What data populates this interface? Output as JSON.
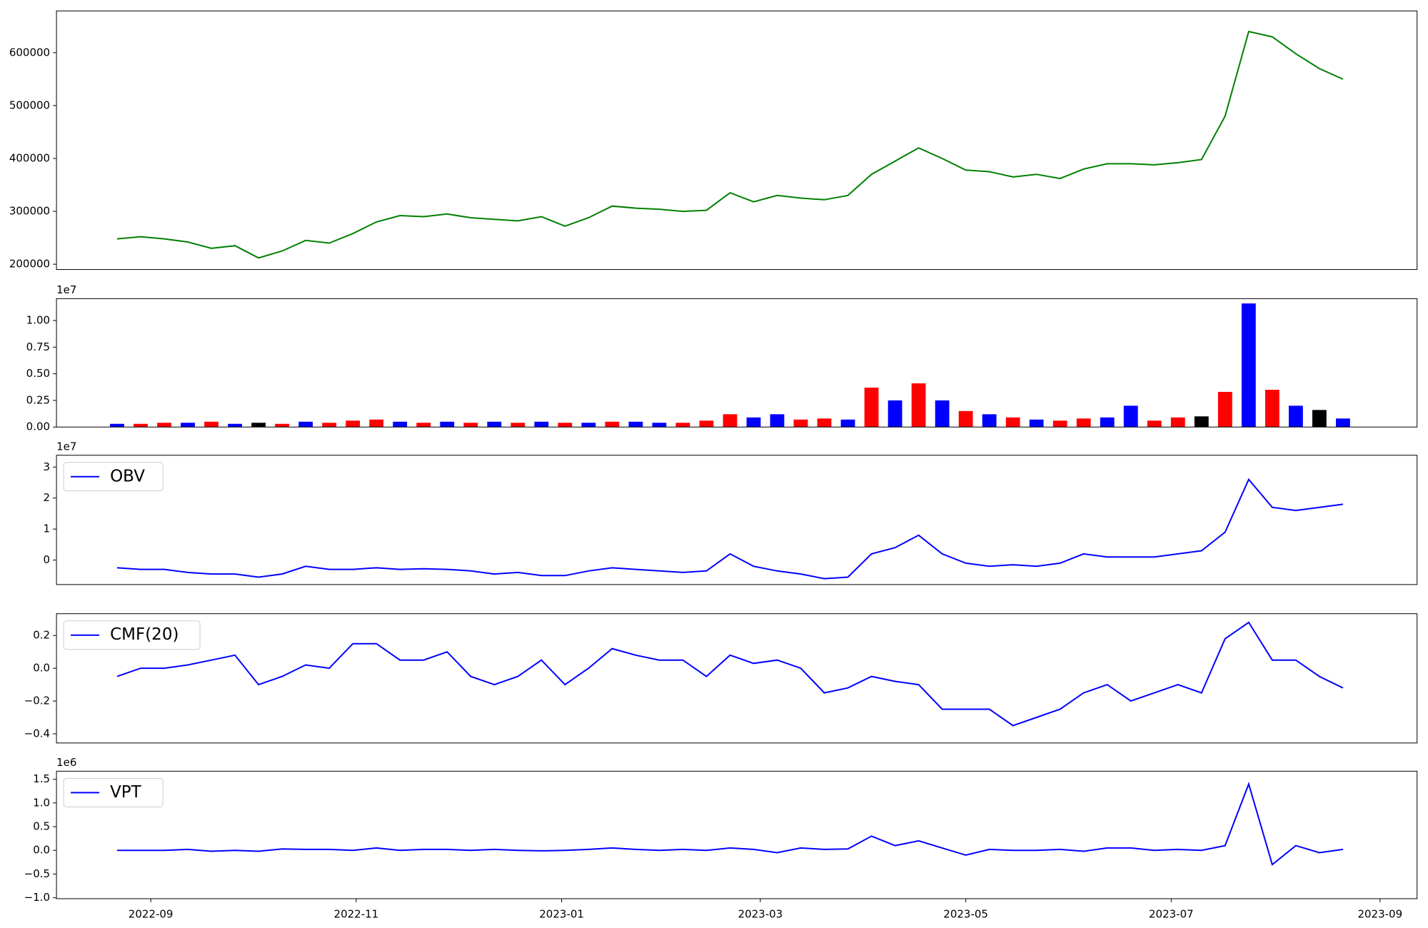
{
  "chart_data": [
    {
      "type": "line",
      "x": [
        19226,
        19233,
        19240,
        19247,
        19254,
        19261,
        19268,
        19275,
        19282,
        19289,
        19296,
        19303,
        19310,
        19317,
        19324,
        19331,
        19338,
        19345,
        19352,
        19359,
        19366,
        19373,
        19380,
        19387,
        19394,
        19401,
        19408,
        19415,
        19422,
        19429,
        19436,
        19443,
        19450,
        19457,
        19464,
        19471,
        19478,
        19485,
        19492,
        19499,
        19506,
        19513,
        19520,
        19527,
        19534,
        19541,
        19548,
        19555,
        19562,
        19569,
        19576,
        19583,
        19590
      ],
      "xlim": [
        19208,
        19612
      ],
      "series": [
        {
          "color": "green",
          "values": [
            248000,
            252000,
            248000,
            242000,
            230000,
            235000,
            212000,
            225000,
            245000,
            240000,
            258000,
            280000,
            292000,
            290000,
            295000,
            288000,
            285000,
            282000,
            290000,
            272000,
            288000,
            310000,
            306000,
            304000,
            300000,
            302000,
            335000,
            318000,
            330000,
            325000,
            322000,
            330000,
            370000,
            395000,
            420000,
            400000,
            378000,
            375000,
            365000,
            370000,
            362000,
            380000,
            390000,
            390000,
            388000,
            392000,
            398000,
            480000,
            640000,
            630000,
            598000,
            570000,
            550000
          ]
        }
      ],
      "ylim": [
        190000,
        679000
      ],
      "yticks": [
        200000,
        300000,
        400000,
        500000,
        600000
      ]
    },
    {
      "type": "bar",
      "x": [
        19226,
        19233,
        19240,
        19247,
        19254,
        19261,
        19268,
        19275,
        19282,
        19289,
        19296,
        19303,
        19310,
        19317,
        19324,
        19331,
        19338,
        19345,
        19352,
        19359,
        19366,
        19373,
        19380,
        19387,
        19394,
        19401,
        19408,
        19415,
        19422,
        19429,
        19436,
        19443,
        19450,
        19457,
        19464,
        19471,
        19478,
        19485,
        19492,
        19499,
        19506,
        19513,
        19520,
        19527,
        19534,
        19541,
        19548,
        19555,
        19562,
        19569,
        19576,
        19583,
        19590
      ],
      "xlim": [
        19208,
        19612
      ],
      "values": [
        0.03,
        0.03,
        0.04,
        0.04,
        0.05,
        0.03,
        0.04,
        0.03,
        0.05,
        0.04,
        0.06,
        0.07,
        0.05,
        0.04,
        0.05,
        0.04,
        0.05,
        0.04,
        0.05,
        0.04,
        0.04,
        0.05,
        0.05,
        0.04,
        0.04,
        0.06,
        0.12,
        0.09,
        0.12,
        0.07,
        0.08,
        0.07,
        0.37,
        0.25,
        0.41,
        0.25,
        0.15,
        0.12,
        0.09,
        0.07,
        0.06,
        0.08,
        0.09,
        0.2,
        0.06,
        0.09,
        0.1,
        0.33,
        1.16,
        0.35,
        0.2,
        0.16,
        0.08
      ],
      "colors": [
        "blue",
        "red",
        "red",
        "blue",
        "red",
        "blue",
        "black",
        "red",
        "blue",
        "red",
        "red",
        "red",
        "blue",
        "red",
        "blue",
        "red",
        "blue",
        "red",
        "blue",
        "red",
        "blue",
        "red",
        "blue",
        "blue",
        "red",
        "red",
        "red",
        "blue",
        "blue",
        "red",
        "red",
        "blue",
        "red",
        "blue",
        "red",
        "blue",
        "red",
        "blue",
        "red",
        "blue",
        "red",
        "red",
        "blue",
        "blue",
        "red",
        "red",
        "black",
        "red",
        "blue",
        "red",
        "blue",
        "black",
        "blue"
      ],
      "y_offset_label": "1e7",
      "ylim": [
        0,
        1.205
      ],
      "yticks": [
        {
          "value": 0,
          "label": "0.00"
        },
        {
          "value": 0.25,
          "label": "0.25"
        },
        {
          "value": 0.5,
          "label": "0.50"
        },
        {
          "value": 0.75,
          "label": "0.75"
        },
        {
          "value": 1,
          "label": "1.00"
        }
      ]
    },
    {
      "type": "line",
      "x": [
        19226,
        19233,
        19240,
        19247,
        19254,
        19261,
        19268,
        19275,
        19282,
        19289,
        19296,
        19303,
        19310,
        19317,
        19324,
        19331,
        19338,
        19345,
        19352,
        19359,
        19366,
        19373,
        19380,
        19387,
        19394,
        19401,
        19408,
        19415,
        19422,
        19429,
        19436,
        19443,
        19450,
        19457,
        19464,
        19471,
        19478,
        19485,
        19492,
        19499,
        19506,
        19513,
        19520,
        19527,
        19534,
        19541,
        19548,
        19555,
        19562,
        19569,
        19576,
        19583,
        19590
      ],
      "xlim": [
        19208,
        19612
      ],
      "series": [
        {
          "name": "OBV",
          "color": "blue",
          "values": [
            -0.25,
            -0.3,
            -0.3,
            -0.4,
            -0.45,
            -0.45,
            -0.55,
            -0.45,
            -0.2,
            -0.3,
            -0.3,
            -0.25,
            -0.3,
            -0.28,
            -0.3,
            -0.35,
            -0.45,
            -0.4,
            -0.5,
            -0.5,
            -0.35,
            -0.25,
            -0.3,
            -0.35,
            -0.4,
            -0.35,
            0.2,
            -0.2,
            -0.35,
            -0.45,
            -0.6,
            -0.55,
            0.2,
            0.4,
            0.8,
            0.2,
            -0.1,
            -0.2,
            -0.15,
            -0.2,
            -0.1,
            0.2,
            0.1,
            0.1,
            0.1,
            0.2,
            0.3,
            0.9,
            2.6,
            1.7,
            1.6,
            1.7,
            1.8
          ]
        }
      ],
      "legend": "upper left",
      "y_offset_label": "1e7",
      "ylim": [
        -0.79,
        3.38
      ],
      "yticks": [
        0,
        1,
        2,
        3
      ]
    },
    {
      "type": "line",
      "x": [
        19226,
        19233,
        19240,
        19247,
        19254,
        19261,
        19268,
        19275,
        19282,
        19289,
        19296,
        19303,
        19310,
        19317,
        19324,
        19331,
        19338,
        19345,
        19352,
        19359,
        19366,
        19373,
        19380,
        19387,
        19394,
        19401,
        19408,
        19415,
        19422,
        19429,
        19436,
        19443,
        19450,
        19457,
        19464,
        19471,
        19478,
        19485,
        19492,
        19499,
        19506,
        19513,
        19520,
        19527,
        19534,
        19541,
        19548,
        19555,
        19562,
        19569,
        19576,
        19583,
        19590
      ],
      "xlim": [
        19208,
        19612
      ],
      "series": [
        {
          "name": "CMF(20)",
          "color": "blue",
          "values": [
            -0.05,
            0.0,
            0.0,
            0.02,
            0.05,
            0.08,
            -0.1,
            -0.05,
            0.02,
            0.0,
            0.15,
            0.15,
            0.05,
            0.05,
            0.1,
            -0.05,
            -0.1,
            -0.05,
            0.05,
            -0.1,
            0.0,
            0.12,
            0.08,
            0.05,
            0.05,
            -0.05,
            0.08,
            0.03,
            0.05,
            0.0,
            -0.15,
            -0.12,
            -0.05,
            -0.08,
            -0.1,
            -0.25,
            -0.25,
            -0.25,
            -0.35,
            -0.3,
            -0.25,
            -0.15,
            -0.1,
            -0.2,
            -0.15,
            -0.1,
            -0.15,
            0.18,
            0.28,
            0.05,
            0.05,
            -0.05,
            -0.12
          ]
        }
      ],
      "legend": "upper left",
      "ylim": [
        -0.456,
        0.333
      ],
      "yticks": [
        {
          "value": -0.4,
          "label": "−0.4"
        },
        {
          "value": -0.2,
          "label": "−0.2"
        },
        {
          "value": 0,
          "label": "0.0"
        },
        {
          "value": 0.2,
          "label": "0.2"
        }
      ]
    },
    {
      "type": "line",
      "x": [
        19226,
        19233,
        19240,
        19247,
        19254,
        19261,
        19268,
        19275,
        19282,
        19289,
        19296,
        19303,
        19310,
        19317,
        19324,
        19331,
        19338,
        19345,
        19352,
        19359,
        19366,
        19373,
        19380,
        19387,
        19394,
        19401,
        19408,
        19415,
        19422,
        19429,
        19436,
        19443,
        19450,
        19457,
        19464,
        19471,
        19478,
        19485,
        19492,
        19499,
        19506,
        19513,
        19520,
        19527,
        19534,
        19541,
        19548,
        19555,
        19562,
        19569,
        19576,
        19583,
        19590
      ],
      "xlim": [
        19208,
        19612
      ],
      "xticks": [
        {
          "value": 19236,
          "label": "2022-09"
        },
        {
          "value": 19297,
          "label": "2022-11"
        },
        {
          "value": 19358,
          "label": "2023-01"
        },
        {
          "value": 19417,
          "label": "2023-03"
        },
        {
          "value": 19478,
          "label": "2023-05"
        },
        {
          "value": 19539,
          "label": "2023-07"
        },
        {
          "value": 19601,
          "label": "2023-09"
        }
      ],
      "series": [
        {
          "name": "VPT",
          "color": "blue",
          "values": [
            0,
            0,
            0,
            0.02,
            -0.02,
            0,
            -0.02,
            0.03,
            0.02,
            0.02,
            0,
            0.05,
            0,
            0.02,
            0.02,
            0,
            0.02,
            0,
            -0.01,
            0,
            0.02,
            0.05,
            0.02,
            0,
            0.02,
            0,
            0.05,
            0.02,
            -0.05,
            0.05,
            0.02,
            0.03,
            0.3,
            0.1,
            0.2,
            0.05,
            -0.1,
            0.02,
            0,
            0,
            0.02,
            -0.02,
            0.05,
            0.05,
            0,
            0.02,
            0,
            0.1,
            1.4,
            -0.3,
            0.1,
            -0.05,
            0.02
          ]
        }
      ],
      "legend": "upper left",
      "y_offset_label": "1e6",
      "ylim": [
        -1.02,
        1.67
      ],
      "yticks": [
        {
          "value": -1,
          "label": "−1.0"
        },
        {
          "value": -0.5,
          "label": "−0.5"
        },
        {
          "value": 0,
          "label": "0.0"
        },
        {
          "value": 0.5,
          "label": "0.5"
        },
        {
          "value": 1,
          "label": "1.0"
        },
        {
          "value": 1.5,
          "label": "1.5"
        }
      ]
    }
  ]
}
